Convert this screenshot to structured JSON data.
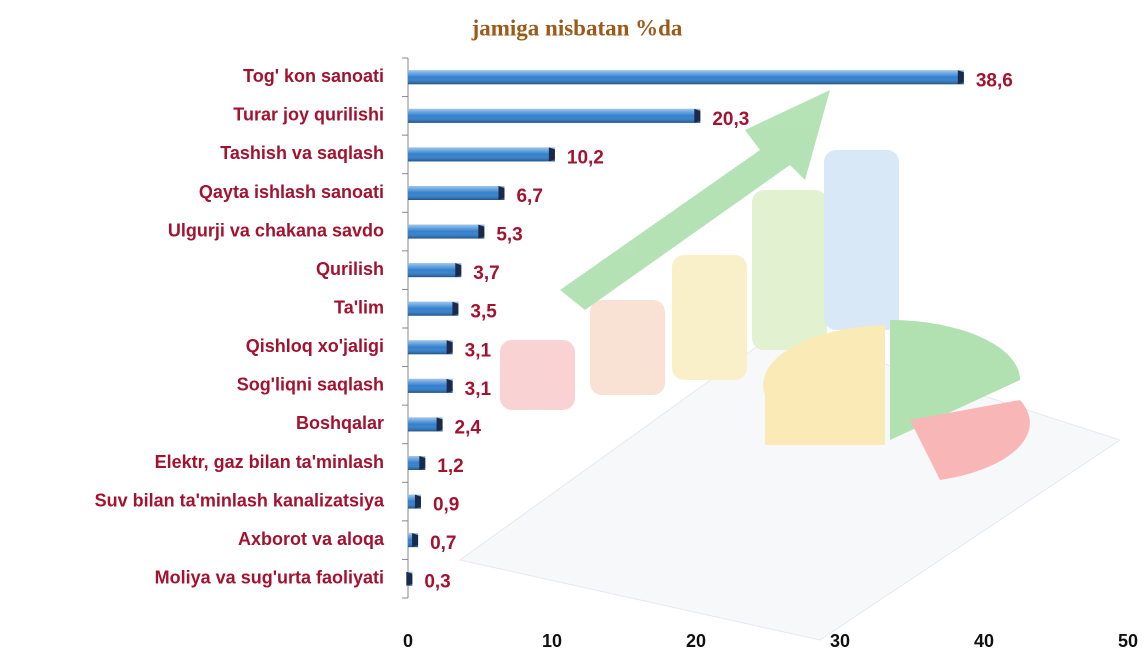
{
  "chart_data": {
    "type": "bar",
    "orientation": "horizontal",
    "title": "jamiga nisbatan %da",
    "categories": [
      "Tog' kon sanoati",
      "Turar joy qurilishi",
      "Tashish va saqlash",
      "Qayta ishlash sanoati",
      "Ulgurji va chakana savdo",
      "Qurilish",
      "Ta'lim",
      "Qishloq xo'jaligi",
      "Sog'liqni saqlash",
      "Boshqalar",
      "Elektr, gaz bilan ta'minlash",
      "Suv bilan ta'minlash kanalizatsiya",
      "Axborot va aloqa",
      "Moliya va sug'urta faoliyati"
    ],
    "values": [
      38.6,
      20.3,
      10.2,
      6.7,
      5.3,
      3.7,
      3.5,
      3.1,
      3.1,
      2.4,
      1.2,
      0.9,
      0.7,
      0.3
    ],
    "value_labels": [
      "38,6",
      "20,3",
      "10,2",
      "6,7",
      "5,3",
      "3,7",
      "3,5",
      "3,1",
      "3,1",
      "2,4",
      "1,2",
      "0,9",
      "0,7",
      "0,3"
    ],
    "color": "#2f7fcf",
    "xlim": [
      0,
      50
    ],
    "xticks": [
      0,
      10,
      20,
      30,
      40,
      50
    ],
    "grid": false
  }
}
